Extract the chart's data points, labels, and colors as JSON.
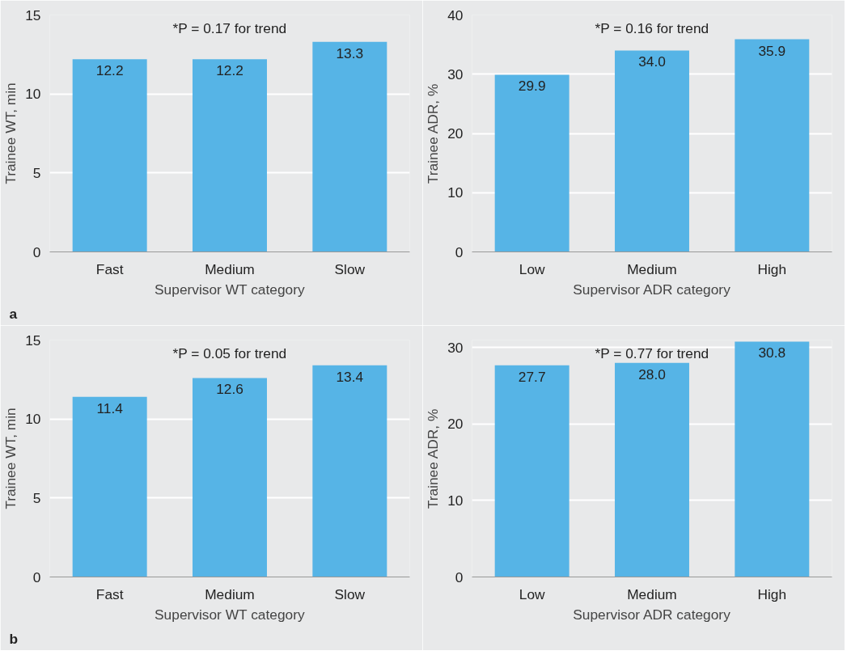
{
  "chart_data": [
    {
      "type": "bar",
      "categories": [
        "Fast",
        "Medium",
        "Slow"
      ],
      "values": [
        12.2,
        12.2,
        13.3
      ],
      "color": "#56b4e6",
      "xlabel": "Supervisor WT category",
      "ylabel": "Trainee WT, min",
      "ylim": [
        0,
        15
      ],
      "yticks": [
        0,
        5,
        10,
        15
      ],
      "grid": "y",
      "data_labels": true,
      "annotations": [
        "*P = 0.17 for trend",
        "a"
      ]
    },
    {
      "type": "bar",
      "categories": [
        "Low",
        "Medium",
        "High"
      ],
      "values": [
        29.9,
        34.0,
        35.9
      ],
      "value_labels": [
        "29.9",
        "34.0",
        "35.9"
      ],
      "color": "#56b4e6",
      "xlabel": "Supervisor ADR category",
      "ylabel": "Trainee ADR, %",
      "ylim": [
        0,
        40
      ],
      "yticks": [
        0,
        10,
        20,
        30,
        40
      ],
      "grid": "y",
      "annotations": [
        "*P = 0.16 for trend"
      ]
    },
    {
      "type": "bar",
      "categories": [
        "Fast",
        "Medium",
        "Slow"
      ],
      "values": [
        11.4,
        12.6,
        13.4
      ],
      "color": "#56b4e6",
      "xlabel": "Supervisor WT category",
      "ylabel": "Trainee WT, min",
      "ylim": [
        0,
        15
      ],
      "yticks": [
        0,
        5,
        10,
        15
      ],
      "grid": "y",
      "data_labels": true,
      "annotations": [
        "*P = 0.05 for trend",
        "b"
      ]
    },
    {
      "type": "bar",
      "categories": [
        "Low",
        "Medium",
        "High"
      ],
      "values": [
        27.7,
        28.0,
        30.8
      ],
      "value_labels": [
        "27.7",
        "28.0",
        "30.8"
      ],
      "color": "#56b4e6",
      "xlabel": "Supervisor ADR category",
      "ylabel": "Trainee ADR, %",
      "ylim": [
        0,
        31
      ],
      "yticks": [
        0,
        10,
        20,
        30
      ],
      "grid": "y",
      "annotations": [
        "*P = 0.77 for trend"
      ]
    }
  ]
}
